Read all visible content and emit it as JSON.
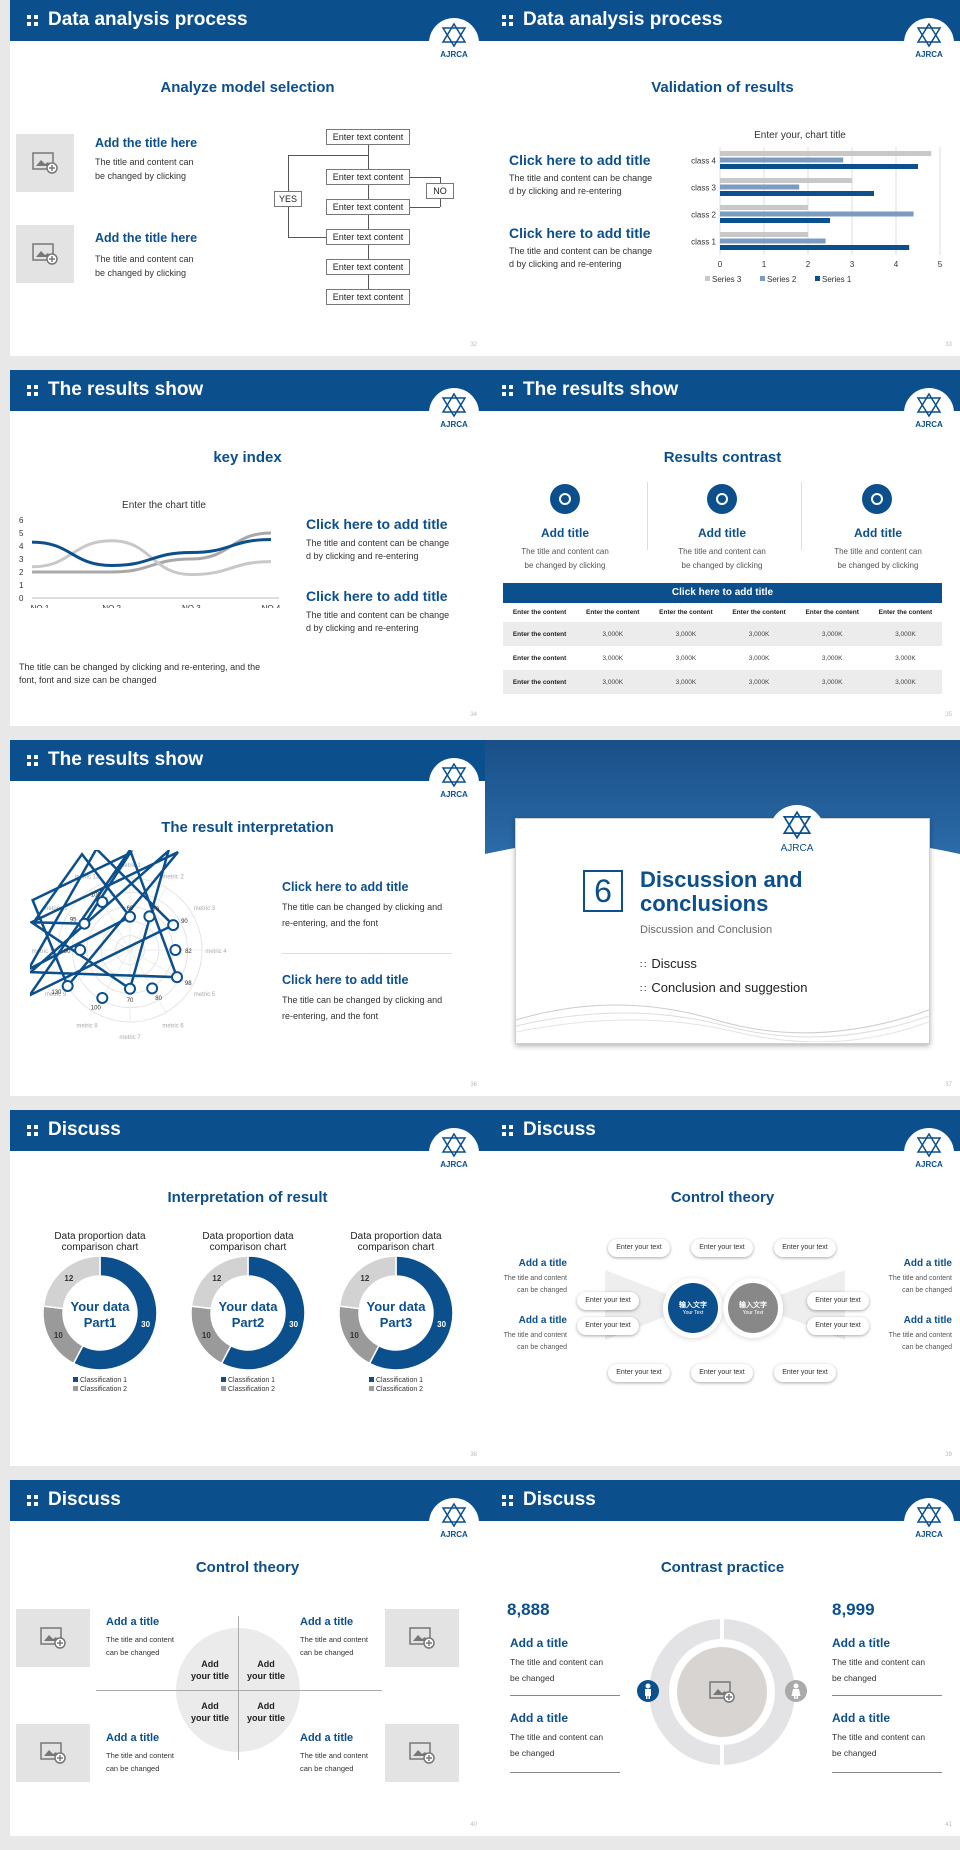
{
  "slides": [
    {
      "header": "Data analysis process",
      "subtitle": "Analyze model selection",
      "page": "32",
      "items": [
        {
          "title": "Add the title here",
          "text1": "The title and content can",
          "text2": "be changed by clicking"
        },
        {
          "title": "Add the title here",
          "text1": "The title and content can",
          "text2": "be changed by clicking"
        }
      ],
      "flow": {
        "box": "Enter text content",
        "yes": "YES",
        "no": "NO"
      }
    },
    {
      "header": "Data analysis process",
      "subtitle": "Validation of results",
      "page": "33",
      "items": [
        {
          "title": "Click here to add title",
          "text1": "The title and content can be change",
          "text2": "d by clicking and re-entering"
        },
        {
          "title": "Click here to add title",
          "text1": "The title and content can be change",
          "text2": "d by clicking and re-entering"
        }
      ]
    },
    {
      "header": "The results show",
      "subtitle": "key index",
      "page": "34",
      "items": [
        {
          "title": "Click here to add title",
          "text1": "The title and content can be change",
          "text2": "d by clicking and re-entering"
        },
        {
          "title": "Click here to add title",
          "text1": "The title and content can be change",
          "text2": "d by clicking and re-entering"
        }
      ],
      "note1": "The title can be changed by clicking and re-entering, and the",
      "note2": "font, font and size can be changed"
    },
    {
      "header": "The results show",
      "subtitle": "Results contrast",
      "page": "35",
      "cols": [
        {
          "title": "Add title",
          "t1": "The title and content can",
          "t2": "be changed by clicking"
        },
        {
          "title": "Add title",
          "t1": "The title and content can",
          "t2": "be changed by clicking"
        },
        {
          "title": "Add title",
          "t1": "The title and content can",
          "t2": "be changed by clicking"
        }
      ],
      "table": {
        "caption": "Click here to add title",
        "header": [
          "Enter the content",
          "Enter the content",
          "Enter the content",
          "Enter the content",
          "Enter the content",
          "Enter the content"
        ],
        "rows": [
          [
            "Enter the content",
            "3,000K",
            "3,000K",
            "3,000K",
            "3,000K",
            "3,000K"
          ],
          [
            "Enter the content",
            "3,000K",
            "3,000K",
            "3,000K",
            "3,000K",
            "3,000K"
          ],
          [
            "Enter the content",
            "3,000K",
            "3,000K",
            "3,000K",
            "3,000K",
            "3,000K"
          ]
        ]
      }
    },
    {
      "header": "The results show",
      "subtitle": "The result interpretation",
      "page": "36",
      "items": [
        {
          "title": "Click here to add  title",
          "text1": "The title can be changed by clicking and",
          "text2": "re-entering, and the font"
        },
        {
          "title": "Click here to add  title",
          "text1": "The title can be changed by clicking and",
          "text2": "re-entering, and the font"
        }
      ]
    },
    {
      "page": "37",
      "number": "6",
      "title1": "Discussion and",
      "title2": "conclusions",
      "subtitle": "Discussion and Conclusion",
      "bullets": [
        "Discuss",
        "Conclusion and suggestion"
      ],
      "logo": "AJRCA"
    },
    {
      "header": "Discuss",
      "subtitle": "Interpretation of result",
      "page": "38",
      "donuts": [
        {
          "title1": "Data proportion data",
          "title2": "comparison chart",
          "center1": "Your data",
          "center2": "Part1"
        },
        {
          "title1": "Data proportion data",
          "title2": "comparison chart",
          "center1": "Your data",
          "center2": "Part2"
        },
        {
          "title1": "Data proportion data",
          "title2": "comparison chart",
          "center1": "Your data",
          "center2": "Part3"
        }
      ],
      "legend": [
        "Classification 1",
        "Classification 2"
      ]
    },
    {
      "header": "Discuss",
      "subtitle": "Control theory",
      "page": "39",
      "pill": "Enter your text",
      "left": [
        {
          "title": "Add a title",
          "t1": "The title and content",
          "t2": "can be changed"
        },
        {
          "title": "Add a title",
          "t1": "The title and content",
          "t2": "can be changed"
        }
      ],
      "right": [
        {
          "title": "Add a title",
          "t1": "The title and content",
          "t2": "can be changed"
        },
        {
          "title": "Add a title",
          "t1": "The title and content",
          "t2": "can be changed"
        }
      ],
      "c1": "输入文字",
      "c2": "Your Text"
    },
    {
      "header": "Discuss",
      "subtitle": "Control theory",
      "page": "40",
      "items": [
        {
          "title": "Add a title",
          "t1": "The title and content",
          "t2": "can be changed"
        },
        {
          "title": "Add a title",
          "t1": "The title and content",
          "t2": "can be changed"
        },
        {
          "title": "Add a title",
          "t1": "The title and content",
          "t2": "can be changed"
        },
        {
          "title": "Add a title",
          "t1": "The title and content",
          "t2": "can be changed"
        }
      ],
      "quad1": "Add",
      "quad2": "your title"
    },
    {
      "header": "Discuss",
      "subtitle": "Contrast practice",
      "page": "41",
      "left_num": "8,888",
      "right_num": "8,999",
      "items": [
        {
          "title": "Add a title",
          "t1": "The title and content can",
          "t2": "be changed"
        },
        {
          "title": "Add a title",
          "t1": "The title and content can",
          "t2": "be changed"
        },
        {
          "title": "Add a title",
          "t1": "The title and content can",
          "t2": "be changed"
        },
        {
          "title": "Add a title",
          "t1": "The title and content can",
          "t2": "be changed"
        }
      ]
    }
  ],
  "logo_text": "AJRCA",
  "chart_data": [
    {
      "type": "bar",
      "title": "Enter your, chart title",
      "orientation": "horizontal",
      "categories": [
        "class 1",
        "class 2",
        "class 3",
        "class 4"
      ],
      "series": [
        {
          "name": "Series 3",
          "color": "#c8c8c8",
          "values": [
            2,
            2,
            3,
            4.8
          ]
        },
        {
          "name": "Series 2",
          "color": "#7b9cc0",
          "values": [
            2.4,
            4.4,
            1.8,
            2.8
          ]
        },
        {
          "name": "Series 1",
          "color": "#0b4f8c",
          "values": [
            4.3,
            2.5,
            3.5,
            4.5
          ]
        }
      ],
      "xlim": [
        0,
        5
      ],
      "xticks": [
        "0",
        "1",
        "2",
        "3",
        "4",
        "5"
      ]
    },
    {
      "type": "line",
      "title": "Enter the chart title",
      "categories": [
        "NO.1",
        "NO.2",
        "NO.3",
        "NO.4"
      ],
      "ylim": [
        0,
        6
      ],
      "yticks": [
        "0",
        "1",
        "2",
        "3",
        "4",
        "5",
        "6"
      ],
      "series": [
        {
          "color": "#0b4f8c",
          "values": [
            4.3,
            2.5,
            3.5,
            4.5
          ]
        },
        {
          "color": "#c8c8c8",
          "values": [
            2.4,
            4.4,
            1.8,
            2.8
          ]
        },
        {
          "color": "#a8a8a8",
          "values": [
            2,
            2,
            3,
            5
          ]
        }
      ]
    },
    {
      "type": "radar",
      "axes": [
        "metric 1",
        "metric 2",
        "metric 3",
        "metric 4",
        "metric 5",
        "metric 6",
        "metric 7",
        "metric 8",
        "metric 9",
        "metric 10",
        "metric 11",
        "metric 12"
      ],
      "values": [
        60,
        70,
        90,
        82,
        98,
        80,
        70,
        100,
        130,
        90,
        95,
        100
      ]
    },
    {
      "type": "pie",
      "title": "Data proportion data comparison chart",
      "categories": [
        "30",
        "10",
        "12"
      ],
      "values": [
        30,
        10,
        12
      ]
    },
    {
      "type": "pie",
      "title": "Data proportion data comparison chart",
      "categories": [
        "30",
        "10",
        "12"
      ],
      "values": [
        30,
        10,
        12
      ]
    },
    {
      "type": "pie",
      "title": "Data proportion data comparison chart",
      "categories": [
        "30",
        "10",
        "12"
      ],
      "values": [
        30,
        10,
        12
      ]
    }
  ],
  "colors": {
    "primary": "#0b4f8c",
    "grey": "#e3e3e3"
  }
}
